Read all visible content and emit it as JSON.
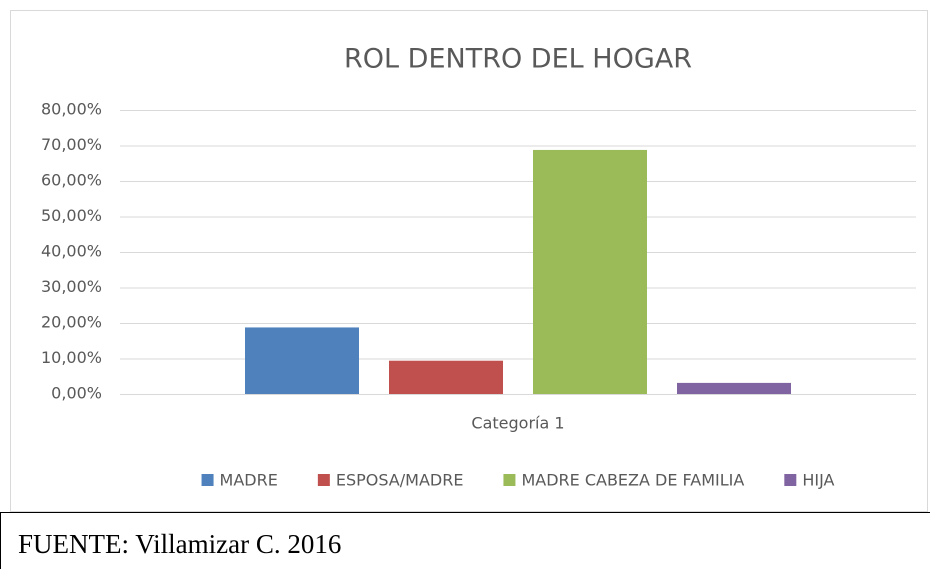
{
  "chart_data": {
    "type": "bar",
    "title": "ROL DENTRO DEL HOGAR",
    "categories": [
      "Categoría 1"
    ],
    "series": [
      {
        "name": "MADRE",
        "color": "#4f81bd",
        "values": [
          18.75
        ]
      },
      {
        "name": "ESPOSA/MADRE",
        "color": "#c0504d",
        "values": [
          9.38
        ]
      },
      {
        "name": "MADRE CABEZA DE FAMILIA",
        "color": "#9bbb59",
        "values": [
          68.75
        ]
      },
      {
        "name": "HIJA",
        "color": "#8064a2",
        "values": [
          3.13
        ]
      }
    ],
    "ylim": [
      0,
      80
    ],
    "yticks": [
      {
        "value": 0,
        "label": "0,00%"
      },
      {
        "value": 10,
        "label": "10,00%"
      },
      {
        "value": 20,
        "label": "20,00%"
      },
      {
        "value": 30,
        "label": "30,00%"
      },
      {
        "value": 40,
        "label": "40,00%"
      },
      {
        "value": 50,
        "label": "50,00%"
      },
      {
        "value": 60,
        "label": "60,00%"
      },
      {
        "value": 70,
        "label": "70,00%"
      },
      {
        "value": 80,
        "label": "80,00%"
      }
    ],
    "grid": true,
    "legend": "bottom"
  },
  "source": "FUENTE: Villamizar C. 2016"
}
